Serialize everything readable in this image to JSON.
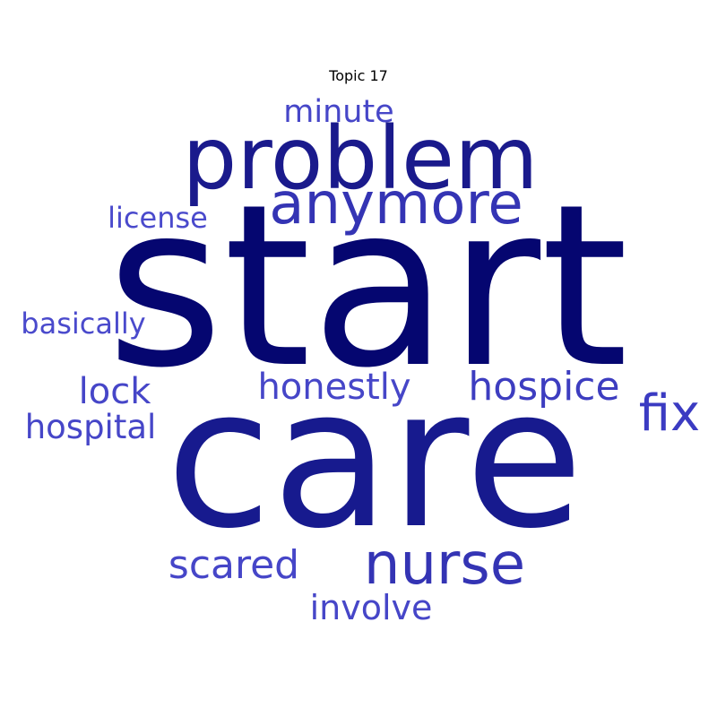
{
  "chart_data": {
    "type": "wordcloud",
    "title": "Topic 17",
    "words": [
      {
        "text": "start",
        "weight": 1.0,
        "color": "#050670"
      },
      {
        "text": "care",
        "weight": 0.86,
        "color": "#171a8e"
      },
      {
        "text": "problem",
        "weight": 0.5,
        "color": "#1a1a8c"
      },
      {
        "text": "anymore",
        "weight": 0.38,
        "color": "#3434b4"
      },
      {
        "text": "nurse",
        "weight": 0.38,
        "color": "#3434b4"
      },
      {
        "text": "fix",
        "weight": 0.3,
        "color": "#3b3bc2"
      },
      {
        "text": "hospice",
        "weight": 0.26,
        "color": "#3d3dc0"
      },
      {
        "text": "lock",
        "weight": 0.24,
        "color": "#4646c8"
      },
      {
        "text": "scared",
        "weight": 0.24,
        "color": "#4646c8"
      },
      {
        "text": "honestly",
        "weight": 0.22,
        "color": "#4646c8"
      },
      {
        "text": "involve",
        "weight": 0.22,
        "color": "#4646c8"
      },
      {
        "text": "hospital",
        "weight": 0.22,
        "color": "#4646c8"
      },
      {
        "text": "minute",
        "weight": 0.21,
        "color": "#4646c8"
      },
      {
        "text": "license",
        "weight": 0.19,
        "color": "#4a4acc"
      },
      {
        "text": "basically",
        "weight": 0.19,
        "color": "#4a4acc"
      }
    ]
  }
}
